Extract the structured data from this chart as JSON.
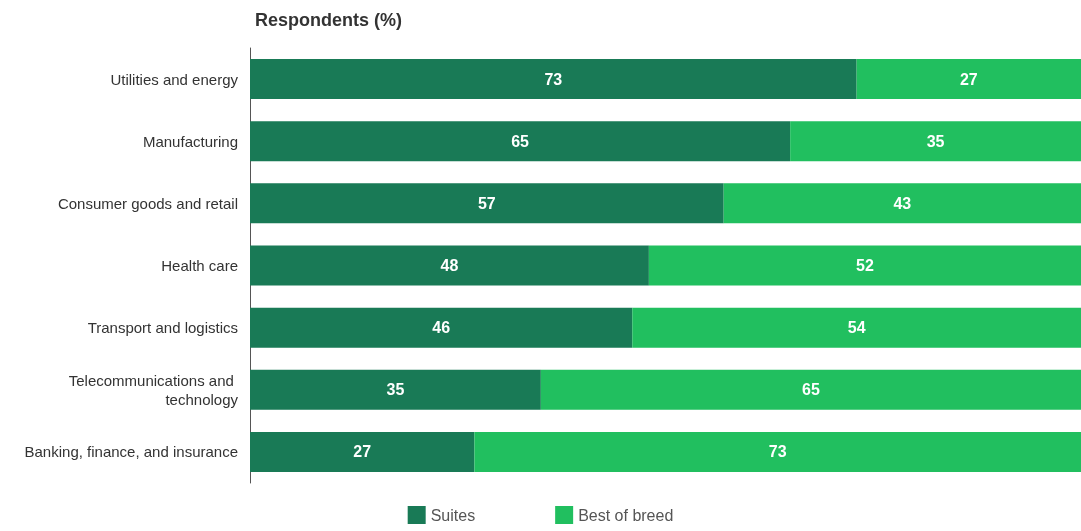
{
  "chart_data": {
    "type": "bar",
    "orientation": "horizontal",
    "stacked": true,
    "title": "Respondents (%)",
    "categories": [
      "Utilities and energy",
      "Manufacturing",
      "Consumer goods and retail",
      "Health care",
      "Transport and logistics",
      "Telecommunications and technology",
      "Banking, finance, and insurance"
    ],
    "series": [
      {
        "name": "Suites",
        "color": "#197a56",
        "values": [
          73,
          65,
          57,
          48,
          46,
          35,
          27
        ]
      },
      {
        "name": "Best of breed",
        "color": "#21bf5f",
        "values": [
          27,
          35,
          43,
          52,
          54,
          65,
          73
        ]
      }
    ],
    "data_labels": true,
    "legend": "bottom",
    "grid": false
  }
}
